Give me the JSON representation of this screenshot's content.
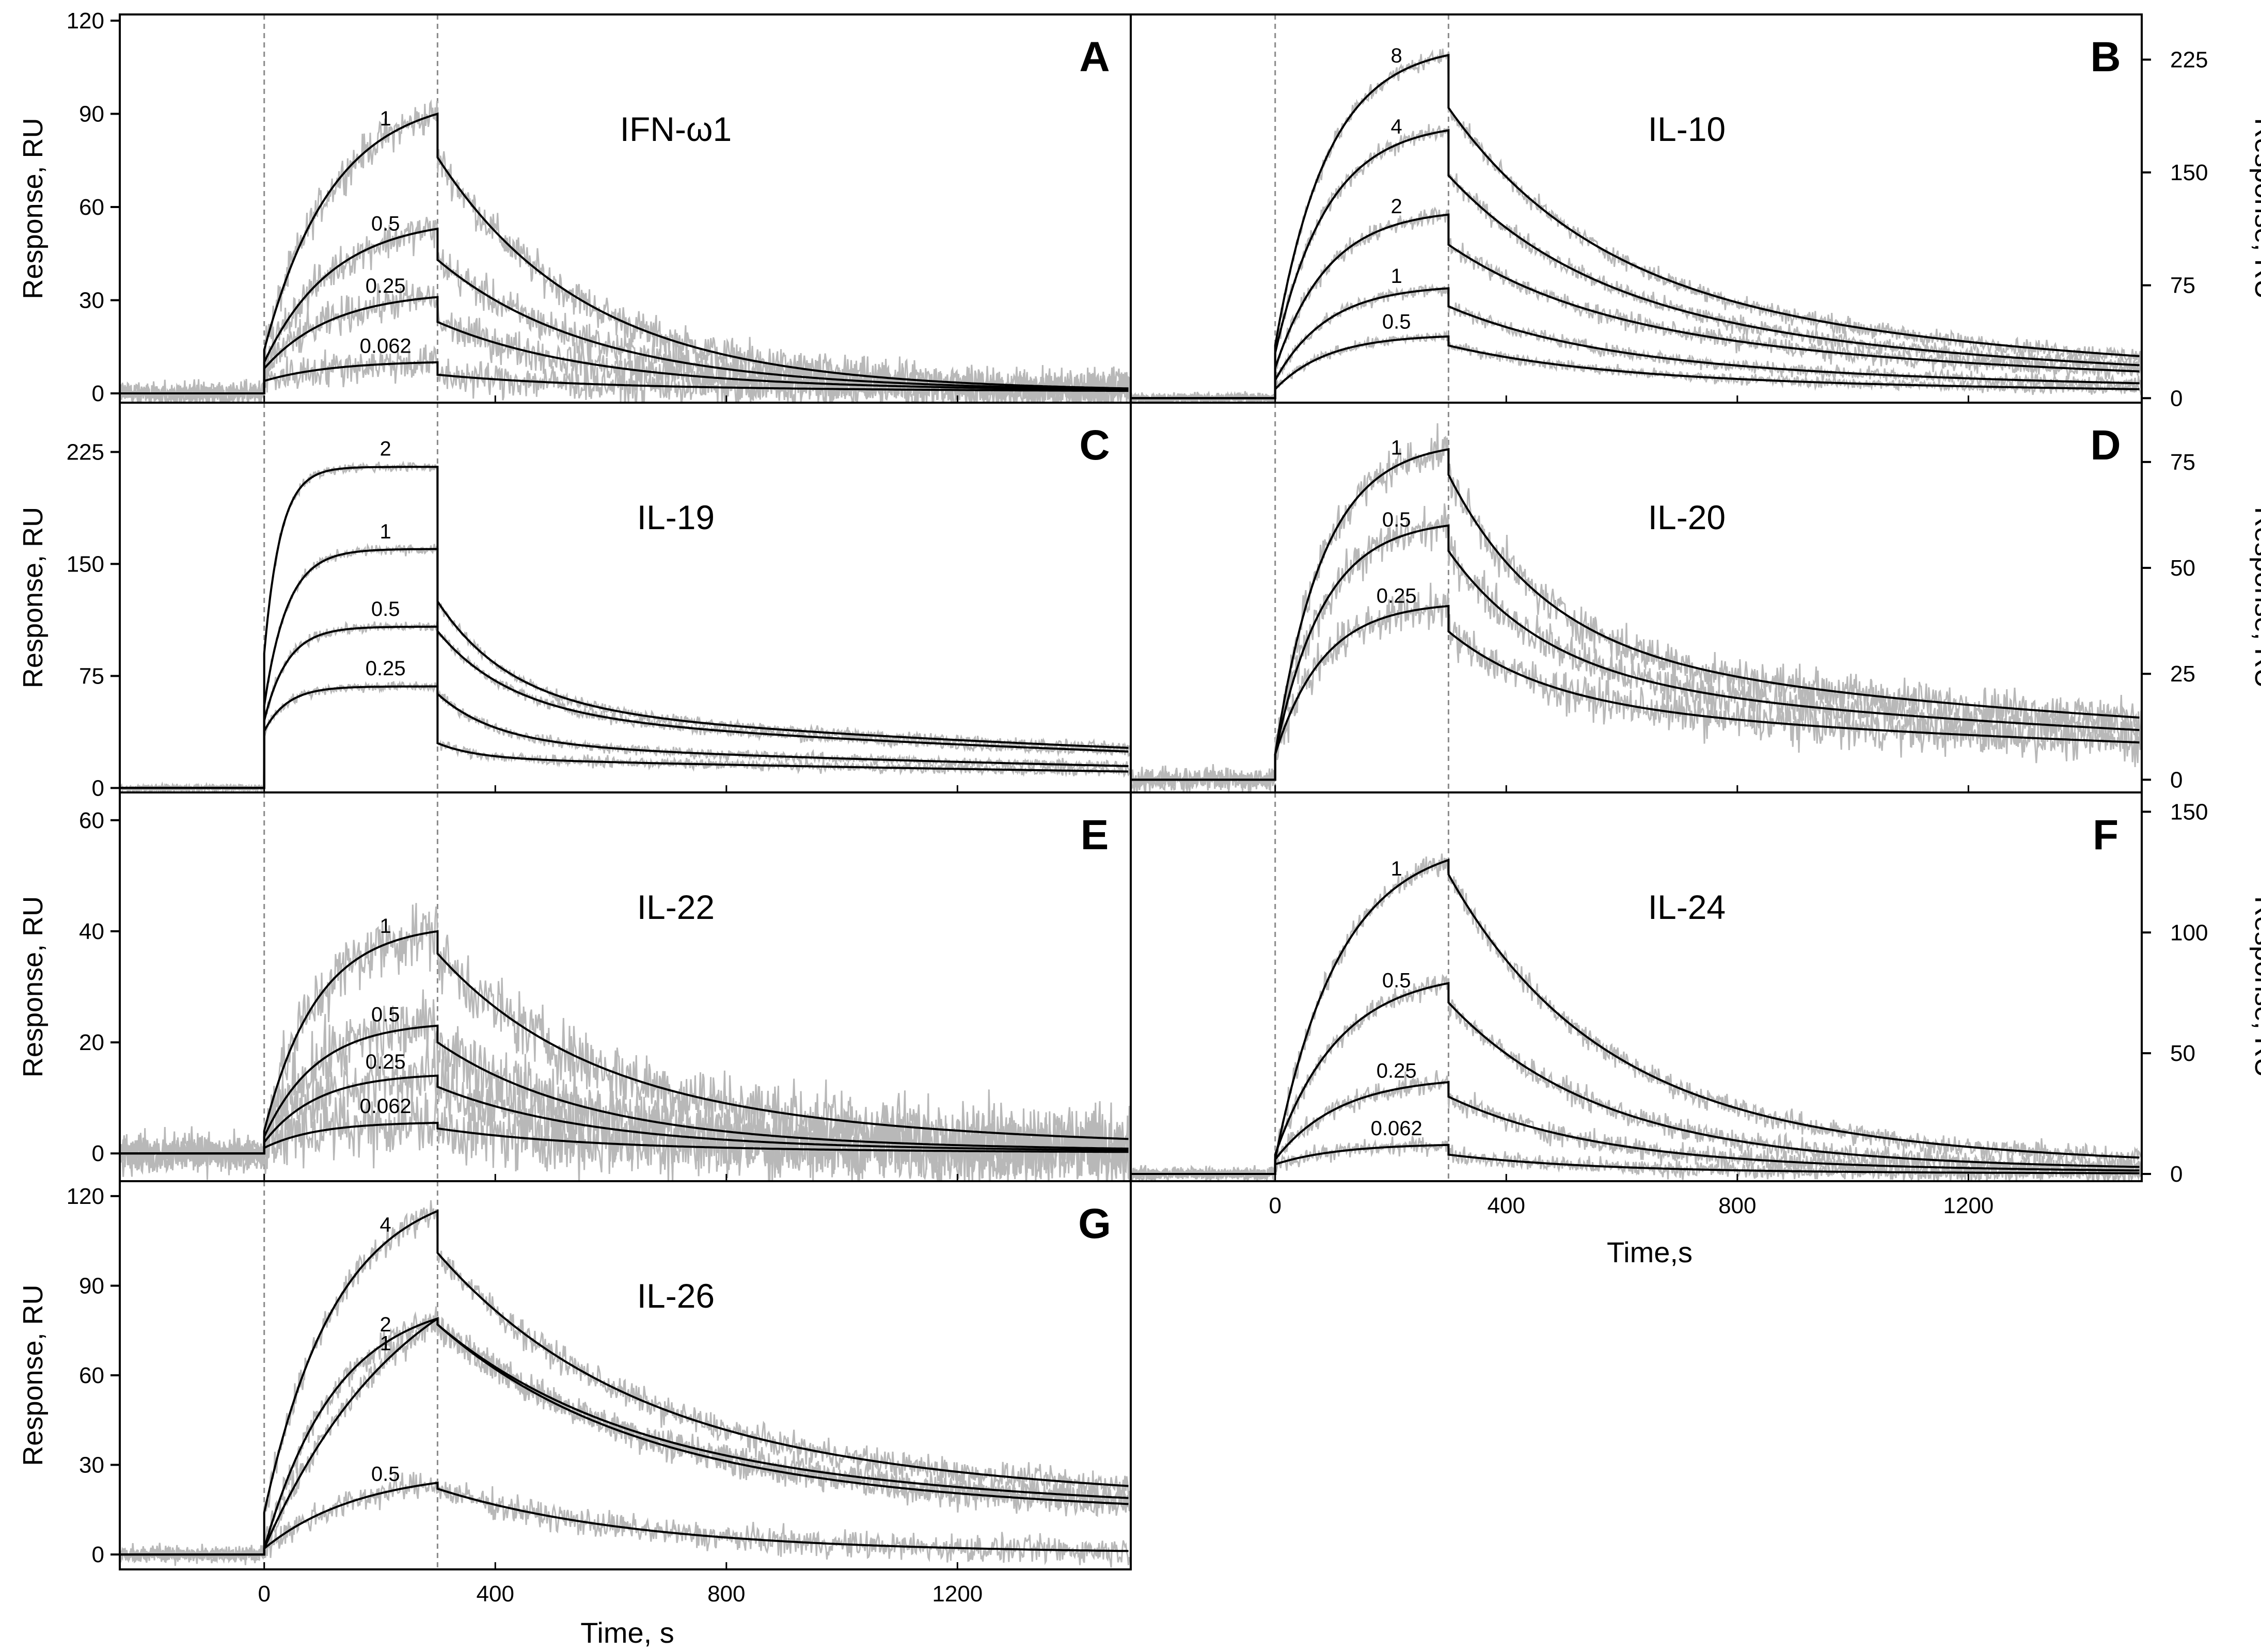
{
  "figure": {
    "colors": {
      "data": "#b8b8b8",
      "fit": "#000000",
      "guide": "#8a8a8a",
      "frame": "#000000"
    },
    "x_axis": {
      "label_left": "Time, s",
      "label_right": "Time,s",
      "ticks": [
        0,
        400,
        800,
        1200
      ],
      "range": [
        -250,
        1500
      ]
    }
  },
  "chart_data": [
    {
      "id": "A",
      "type": "line",
      "title": "IFN-ω1",
      "letter": "A",
      "xlabel": "Time, s",
      "ylabel": "Response, RU",
      "ylim": [
        -3,
        122
      ],
      "yticks": [
        0,
        30,
        60,
        90,
        120
      ],
      "yaxis_side": "left",
      "injection_start": 0,
      "injection_end": 300,
      "series": [
        {
          "name": "1",
          "plateau": 90,
          "kon": 0.0085,
          "jump": 14,
          "resid": 6,
          "fast": 0.004,
          "slow": 0.0015,
          "noise": 5
        },
        {
          "name": "0.5",
          "plateau": 53,
          "kon": 0.0085,
          "jump": 10,
          "resid": 6,
          "fast": 0.004,
          "slow": 0.0015,
          "noise": 5
        },
        {
          "name": "0.25",
          "plateau": 31,
          "kon": 0.0085,
          "jump": 8,
          "resid": 4,
          "fast": 0.004,
          "slow": 0.0012,
          "noise": 5
        },
        {
          "name": "0.062",
          "plateau": 10,
          "kon": 0.0085,
          "jump": 4,
          "resid": 2,
          "fast": 0.004,
          "slow": 0.0008,
          "noise": 5
        }
      ]
    },
    {
      "id": "B",
      "type": "line",
      "title": "IL-10",
      "letter": "B",
      "xlabel": "Time,s",
      "ylabel": "Response, RU",
      "ylim": [
        -3,
        255
      ],
      "yticks": [
        0,
        75,
        150,
        225
      ],
      "yaxis_side": "right",
      "injection_start": 0,
      "injection_end": 300,
      "series": [
        {
          "name": "8",
          "plateau": 228,
          "kon": 0.011,
          "jump": 35,
          "resid": 70,
          "fast": 0.004,
          "slow": 0.0008,
          "noise": 5
        },
        {
          "name": "4",
          "plateau": 178,
          "kon": 0.011,
          "jump": 30,
          "resid": 55,
          "fast": 0.004,
          "slow": 0.0008,
          "noise": 5
        },
        {
          "name": "2",
          "plateau": 122,
          "kon": 0.011,
          "jump": 20,
          "resid": 45,
          "fast": 0.004,
          "slow": 0.0008,
          "noise": 5
        },
        {
          "name": "1",
          "plateau": 73,
          "kon": 0.011,
          "jump": 12,
          "resid": 25,
          "fast": 0.004,
          "slow": 0.0008,
          "noise": 4
        },
        {
          "name": "0.5",
          "plateau": 41,
          "kon": 0.011,
          "jump": 6,
          "resid": 15,
          "fast": 0.004,
          "slow": 0.0008,
          "noise": 3
        }
      ]
    },
    {
      "id": "C",
      "type": "line",
      "title": "IL-19",
      "letter": "C",
      "xlabel": "Time, s",
      "ylabel": "Response, RU",
      "ylim": [
        -3,
        258
      ],
      "yticks": [
        0,
        75,
        150,
        225
      ],
      "yaxis_side": "left",
      "injection_start": 0,
      "injection_end": 300,
      "series": [
        {
          "name": "2",
          "plateau": 215,
          "kon": 0.035,
          "jump": 90,
          "resid": 55,
          "fast": 0.008,
          "slow": 0.0006,
          "noise": 3
        },
        {
          "name": "1",
          "plateau": 160,
          "kon": 0.025,
          "jump": 55,
          "resid": 50,
          "fast": 0.008,
          "slow": 0.0006,
          "noise": 3
        },
        {
          "name": "0.5",
          "plateau": 108,
          "kon": 0.025,
          "jump": 45,
          "resid": 30,
          "fast": 0.01,
          "slow": 0.0006,
          "noise": 3
        },
        {
          "name": "0.25",
          "plateau": 68,
          "kon": 0.025,
          "jump": 38,
          "resid": 20,
          "fast": 0.015,
          "slow": 0.0005,
          "noise": 3
        }
      ]
    },
    {
      "id": "D",
      "type": "line",
      "title": "IL-20",
      "letter": "D",
      "xlabel": "Time,s",
      "ylabel": "Response, RU",
      "ylim": [
        -3,
        89
      ],
      "yticks": [
        0,
        25,
        50,
        75
      ],
      "yaxis_side": "right",
      "injection_start": 0,
      "injection_end": 300,
      "series": [
        {
          "name": "1",
          "plateau": 78,
          "kon": 0.012,
          "jump": 6,
          "resid": 30,
          "fast": 0.006,
          "slow": 0.0006,
          "noise": 4
        },
        {
          "name": "0.5",
          "plateau": 60,
          "kon": 0.012,
          "jump": 6,
          "resid": 24,
          "fast": 0.006,
          "slow": 0.0006,
          "noise": 4
        },
        {
          "name": "0.25",
          "plateau": 41,
          "kon": 0.012,
          "jump": 6,
          "resid": 18,
          "fast": 0.006,
          "slow": 0.0006,
          "noise": 4
        }
      ]
    },
    {
      "id": "E",
      "type": "line",
      "title": "IL-22",
      "letter": "E",
      "xlabel": "Time, s",
      "ylabel": "Response, RU",
      "ylim": [
        -5,
        65
      ],
      "yticks": [
        0,
        20,
        40,
        60
      ],
      "yaxis_side": "left",
      "injection_start": 0,
      "injection_end": 300,
      "series": [
        {
          "name": "1",
          "plateau": 40,
          "kon": 0.011,
          "jump": 4,
          "resid": 10,
          "fast": 0.004,
          "slow": 0.0012,
          "noise": 5
        },
        {
          "name": "0.5",
          "plateau": 23,
          "kon": 0.011,
          "jump": 3,
          "resid": 3,
          "fast": 0.004,
          "slow": 0.0012,
          "noise": 5
        },
        {
          "name": "0.25",
          "plateau": 14,
          "kon": 0.011,
          "jump": 2,
          "resid": 2,
          "fast": 0.004,
          "slow": 0.0012,
          "noise": 5
        },
        {
          "name": "0.062",
          "plateau": 5.5,
          "kon": 0.011,
          "jump": 1,
          "resid": 1,
          "fast": 0.004,
          "slow": 0.0012,
          "noise": 5
        }
      ]
    },
    {
      "id": "F",
      "type": "line",
      "title": "IL-24",
      "letter": "F",
      "xlabel": "Time,s",
      "ylabel": "Response, RU",
      "ylim": [
        -3,
        158
      ],
      "yticks": [
        0,
        50,
        100,
        150
      ],
      "yaxis_side": "right",
      "injection_start": 0,
      "injection_end": 300,
      "series": [
        {
          "name": "1",
          "plateau": 130,
          "kon": 0.009,
          "jump": 6,
          "resid": 25,
          "fast": 0.004,
          "slow": 0.0012,
          "noise": 4
        },
        {
          "name": "0.5",
          "plateau": 79,
          "kon": 0.009,
          "jump": 8,
          "resid": 10,
          "fast": 0.004,
          "slow": 0.0012,
          "noise": 4
        },
        {
          "name": "0.25",
          "plateau": 38,
          "kon": 0.009,
          "jump": 6,
          "resid": 5,
          "fast": 0.004,
          "slow": 0.0012,
          "noise": 4
        },
        {
          "name": "0.062",
          "plateau": 12,
          "kon": 0.009,
          "jump": 4,
          "resid": 1,
          "fast": 0.004,
          "slow": 0.0012,
          "noise": 3
        }
      ]
    },
    {
      "id": "G",
      "type": "line",
      "title": "IL-26",
      "letter": "G",
      "xlabel": "Time, s",
      "ylabel": "Response, RU",
      "ylim": [
        -5,
        125
      ],
      "yticks": [
        0,
        30,
        60,
        90,
        120
      ],
      "yaxis_side": "left",
      "injection_start": 0,
      "injection_end": 300,
      "series": [
        {
          "name": "4",
          "plateau": 115,
          "kon": 0.008,
          "jump": 14,
          "resid": 30,
          "fast": 0.003,
          "slow": 0.0003,
          "noise": 4
        },
        {
          "name": "2",
          "plateau": 79,
          "kon": 0.008,
          "jump": 2,
          "resid": 25,
          "fast": 0.003,
          "slow": 0.0003,
          "noise": 4
        },
        {
          "name": "1",
          "plateau": 79,
          "kon": 0.004,
          "jump": 2,
          "resid": 22,
          "fast": 0.003,
          "slow": 0.0003,
          "noise": 4
        },
        {
          "name": "0.5",
          "plateau": 24,
          "kon": 0.006,
          "jump": 2,
          "resid": 2,
          "fast": 0.003,
          "slow": 0.001,
          "noise": 4
        }
      ]
    }
  ]
}
